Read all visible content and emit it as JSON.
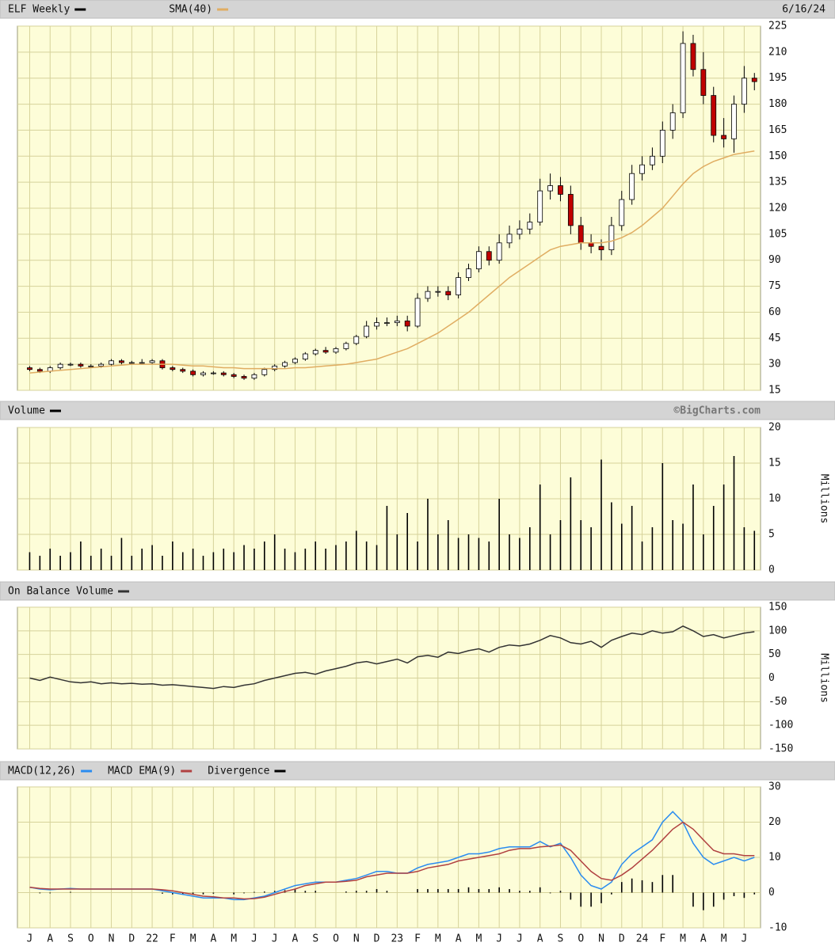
{
  "chart_data": [
    {
      "type": "candlestick",
      "title": "ELF Weekly",
      "date": "6/16/24",
      "x": [
        0,
        0.5,
        1,
        1.5,
        2,
        2.5,
        3,
        3.5,
        4,
        4.5,
        5,
        5.5,
        6,
        6.5,
        7,
        7.5,
        8,
        8.5,
        9,
        9.5,
        10,
        10.5,
        11,
        11.5,
        12,
        12.5,
        13,
        13.5,
        14,
        14.5,
        15,
        15.5,
        16,
        16.5,
        17,
        17.5,
        18,
        18.5,
        19,
        19.5,
        20,
        20.5,
        21,
        21.5,
        22,
        22.5,
        23,
        23.5,
        24,
        24.5,
        25,
        25.5,
        26,
        26.5,
        27,
        27.5,
        28,
        28.5,
        29,
        29.5,
        30,
        30.5,
        31,
        31.5,
        32,
        32.5,
        33,
        33.5,
        34,
        34.5,
        35,
        35.5
      ],
      "open": [
        28,
        27,
        26,
        28,
        30,
        30,
        29,
        29,
        30,
        32,
        31,
        31,
        31,
        32,
        28,
        27,
        26,
        24,
        25,
        25,
        24,
        23,
        22,
        24,
        27,
        29,
        31,
        33,
        36,
        38,
        37,
        39,
        42,
        46,
        52,
        54,
        54,
        55,
        52,
        68,
        72,
        72,
        70,
        80,
        85,
        95,
        90,
        100,
        105,
        108,
        112,
        130,
        133,
        128,
        110,
        100,
        98,
        96,
        110,
        125,
        140,
        145,
        150,
        165,
        175,
        215,
        200,
        185,
        162,
        160,
        180,
        195
      ],
      "high": [
        29,
        28,
        29,
        31,
        31,
        31,
        30,
        31,
        33,
        33,
        32,
        33,
        33,
        33,
        29,
        28,
        27,
        26,
        26,
        26,
        25,
        24,
        25,
        28,
        30,
        32,
        34,
        37,
        39,
        40,
        40,
        43,
        47,
        55,
        57,
        57,
        58,
        58,
        71,
        75,
        75,
        75,
        83,
        88,
        98,
        98,
        105,
        110,
        113,
        117,
        137,
        140,
        138,
        133,
        115,
        105,
        102,
        115,
        130,
        145,
        150,
        155,
        170,
        180,
        222,
        220,
        210,
        190,
        172,
        185,
        202,
        198
      ],
      "low": [
        26,
        25,
        25,
        27,
        29,
        28,
        28,
        28,
        29,
        30,
        30,
        30,
        30,
        27,
        26,
        25,
        23,
        23,
        24,
        23,
        22,
        21,
        21,
        23,
        26,
        28,
        30,
        32,
        35,
        36,
        36,
        38,
        41,
        45,
        50,
        52,
        52,
        49,
        51,
        66,
        69,
        67,
        68,
        78,
        83,
        87,
        88,
        97,
        102,
        105,
        110,
        125,
        124,
        105,
        96,
        94,
        90,
        93,
        107,
        122,
        136,
        142,
        146,
        160,
        172,
        196,
        180,
        158,
        155,
        152,
        175,
        188
      ],
      "close": [
        27,
        26,
        28,
        30,
        30,
        29,
        29,
        30,
        32,
        31,
        31,
        31,
        32,
        28,
        27,
        26,
        24,
        25,
        25,
        24,
        23,
        22,
        24,
        27,
        29,
        31,
        33,
        36,
        38,
        37,
        39,
        42,
        46,
        52,
        54,
        54,
        55,
        52,
        68,
        72,
        72,
        70,
        80,
        85,
        95,
        90,
        100,
        105,
        108,
        112,
        130,
        133,
        128,
        110,
        100,
        98,
        96,
        110,
        125,
        140,
        145,
        150,
        165,
        175,
        215,
        200,
        185,
        162,
        160,
        180,
        195,
        193
      ],
      "up_color": "#ffffff",
      "down_color": "#c00000",
      "color": "#000000",
      "series": [
        {
          "name": "SMA(40)",
          "color": "#e0ad62",
          "values": [
            25,
            25.5,
            26,
            26.5,
            27,
            27.5,
            28,
            28.5,
            29,
            29.5,
            30,
            30,
            30,
            30,
            30,
            29.5,
            29,
            29,
            28.5,
            28,
            28,
            27.5,
            27.5,
            27.5,
            27.5,
            27.5,
            28,
            28,
            28.5,
            29,
            29.5,
            30,
            31,
            32,
            33,
            35,
            37,
            39,
            42,
            45,
            48,
            52,
            56,
            60,
            65,
            70,
            75,
            80,
            84,
            88,
            92,
            96,
            98,
            99,
            100,
            100,
            100,
            101,
            103,
            106,
            110,
            115,
            120,
            127,
            134,
            140,
            144,
            147,
            149,
            151,
            152,
            153
          ]
        }
      ],
      "xlim": [
        -0.6,
        35.8
      ],
      "xticks": [
        {
          "value": 0,
          "label": "J"
        },
        {
          "value": 1,
          "label": "A"
        },
        {
          "value": 2,
          "label": "S"
        },
        {
          "value": 3,
          "label": "O"
        },
        {
          "value": 4,
          "label": "N"
        },
        {
          "value": 5,
          "label": "D"
        },
        {
          "value": 6,
          "label": "22"
        },
        {
          "value": 7,
          "label": "F"
        },
        {
          "value": 8,
          "label": "M"
        },
        {
          "value": 9,
          "label": "A"
        },
        {
          "value": 10,
          "label": "M"
        },
        {
          "value": 11,
          "label": "J"
        },
        {
          "value": 12,
          "label": "J"
        },
        {
          "value": 13,
          "label": "A"
        },
        {
          "value": 14,
          "label": "S"
        },
        {
          "value": 15,
          "label": "O"
        },
        {
          "value": 16,
          "label": "N"
        },
        {
          "value": 17,
          "label": "D"
        },
        {
          "value": 18,
          "label": "23"
        },
        {
          "value": 19,
          "label": "F"
        },
        {
          "value": 20,
          "label": "M"
        },
        {
          "value": 21,
          "label": "A"
        },
        {
          "value": 22,
          "label": "M"
        },
        {
          "value": 23,
          "label": "J"
        },
        {
          "value": 24,
          "label": "J"
        },
        {
          "value": 25,
          "label": "A"
        },
        {
          "value": 26,
          "label": "S"
        },
        {
          "value": 27,
          "label": "O"
        },
        {
          "value": 28,
          "label": "N"
        },
        {
          "value": 29,
          "label": "D"
        },
        {
          "value": 30,
          "label": "24"
        },
        {
          "value": 31,
          "label": "F"
        },
        {
          "value": 32,
          "label": "M"
        },
        {
          "value": 33,
          "label": "A"
        },
        {
          "value": 34,
          "label": "M"
        },
        {
          "value": 35,
          "label": "J"
        }
      ],
      "ylim": [
        15,
        225
      ],
      "yticks": [
        15,
        30,
        45,
        60,
        75,
        90,
        105,
        120,
        135,
        150,
        165,
        180,
        195,
        210,
        225
      ]
    },
    {
      "type": "bar",
      "title": "Volume",
      "source": "©BigCharts.com",
      "y_label": "Millions",
      "color": "#000000",
      "values": [
        2.5,
        2,
        3,
        2,
        2.5,
        4,
        2,
        3,
        2,
        4.5,
        2,
        3,
        3.5,
        2,
        4,
        2.5,
        3,
        2,
        2.5,
        3,
        2.5,
        3.5,
        3,
        4,
        5,
        3,
        2.5,
        3,
        4,
        3,
        3.5,
        4,
        5.5,
        4,
        3.5,
        9,
        5,
        8,
        4,
        10,
        5,
        7,
        4.5,
        5,
        4.5,
        4,
        10,
        5,
        4.5,
        6,
        12,
        5,
        7,
        13,
        7,
        6,
        15.5,
        9.5,
        6.5,
        9,
        4,
        6,
        15,
        7,
        6.5,
        12,
        5,
        9,
        12,
        16,
        6,
        5.5
      ],
      "ylim": [
        0,
        20
      ],
      "yticks": [
        0,
        5,
        10,
        15,
        20
      ]
    },
    {
      "type": "line",
      "title": "On Balance Volume",
      "y_label": "Millions",
      "color": "#333333",
      "values": [
        0,
        -5,
        2,
        -3,
        -8,
        -10,
        -8,
        -12,
        -10,
        -12,
        -11,
        -13,
        -12,
        -15,
        -14,
        -16,
        -18,
        -20,
        -22,
        -18,
        -20,
        -15,
        -12,
        -5,
        0,
        5,
        10,
        12,
        8,
        15,
        20,
        25,
        32,
        35,
        30,
        35,
        40,
        32,
        45,
        48,
        44,
        55,
        52,
        58,
        62,
        55,
        65,
        70,
        68,
        72,
        80,
        90,
        85,
        75,
        72,
        78,
        65,
        80,
        88,
        95,
        92,
        100,
        95,
        98,
        110,
        100,
        88,
        92,
        85,
        90,
        95,
        98
      ],
      "ylim": [
        -150,
        150
      ],
      "yticks": [
        -150,
        -100,
        -50,
        0,
        50,
        100,
        150
      ]
    },
    {
      "type": "combo",
      "series": [
        {
          "name": "MACD(12,26)",
          "mark": "line",
          "color": "#2a8cf0",
          "values": [
            1.5,
            1,
            0.8,
            1,
            1.2,
            1,
            1,
            1,
            1,
            1,
            1,
            1,
            1,
            0.5,
            0,
            -0.5,
            -1,
            -1.5,
            -1.5,
            -1.5,
            -2,
            -2,
            -1.5,
            -1,
            0,
            1,
            2,
            2.5,
            3,
            3,
            3,
            3.5,
            4,
            5,
            6,
            6,
            5.5,
            5.5,
            7,
            8,
            8.5,
            9,
            10,
            11,
            11,
            11.5,
            12.5,
            13,
            13,
            13,
            14.5,
            13,
            14,
            10,
            5,
            2,
            1,
            3,
            8,
            11,
            13,
            15,
            20,
            23,
            20,
            14,
            10,
            8,
            9,
            10,
            9,
            10
          ]
        },
        {
          "name": "MACD EMA(9)",
          "mark": "line",
          "color": "#b04040",
          "values": [
            1.5,
            1.2,
            1,
            1,
            1,
            1,
            1,
            1,
            1,
            1,
            1,
            1,
            1,
            0.8,
            0.5,
            0,
            -0.5,
            -1,
            -1.2,
            -1.5,
            -1.5,
            -1.8,
            -1.7,
            -1.3,
            -0.5,
            0.3,
            1,
            2,
            2.5,
            3,
            3,
            3.2,
            3.5,
            4.5,
            5,
            5.5,
            5.5,
            5.5,
            6,
            7,
            7.5,
            8,
            9,
            9.5,
            10,
            10.5,
            11,
            12,
            12.5,
            12.5,
            13,
            13.2,
            13.5,
            12,
            9,
            6,
            4,
            3.5,
            5,
            7,
            9.5,
            12,
            15,
            18,
            20,
            18,
            15,
            12,
            11,
            11,
            10.5,
            10.5
          ]
        },
        {
          "name": "Divergence",
          "mark": "bar",
          "color": "#000000",
          "values": [
            0,
            -0.2,
            -0.2,
            0,
            0.2,
            0,
            0,
            0,
            0,
            0,
            0,
            0,
            0,
            -0.3,
            -0.5,
            -0.5,
            -0.5,
            -0.5,
            -0.3,
            0,
            -0.5,
            -0.2,
            0.2,
            0.3,
            0.5,
            0.7,
            1,
            0.5,
            0.5,
            0,
            0,
            0.3,
            0.5,
            0.5,
            1,
            0.5,
            0,
            0,
            1,
            1,
            1,
            1,
            1,
            1.5,
            1,
            1,
            1.5,
            1,
            0.5,
            0.5,
            1.5,
            -0.2,
            0.5,
            -2,
            -4,
            -4,
            -3,
            -0.5,
            3,
            4,
            3.5,
            3,
            5,
            5,
            0,
            -4,
            -5,
            -4,
            -2,
            -1,
            -1.5,
            -0.5
          ]
        }
      ],
      "ylim": [
        -10,
        30
      ],
      "yticks": [
        -10,
        0,
        10,
        20,
        30
      ]
    }
  ]
}
